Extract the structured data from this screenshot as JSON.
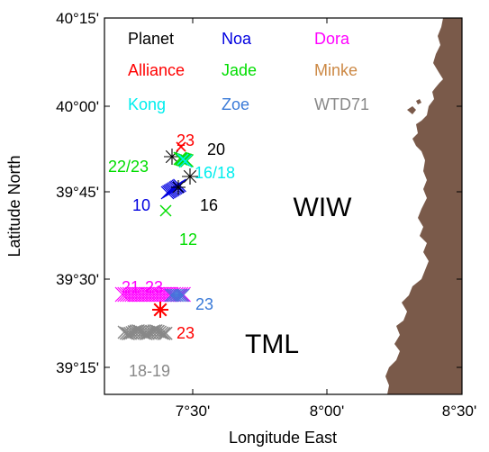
{
  "axes": {
    "x_title": "Longitude East",
    "y_title": "Latitude North",
    "x_ticks": [
      "7°30'",
      "8°00'",
      "8°30'"
    ],
    "y_ticks": [
      "40°15'",
      "40°00'",
      "39°45'",
      "39°30'",
      "39°15'"
    ]
  },
  "legend": [
    {
      "label": "Planet",
      "color": "#000000"
    },
    {
      "label": "Noa",
      "color": "#0000e0"
    },
    {
      "label": "Dora",
      "color": "#ff00ff"
    },
    {
      "label": "Alliance",
      "color": "#ff0000"
    },
    {
      "label": "Jade",
      "color": "#00dd00"
    },
    {
      "label": "Minke",
      "color": "#cc8844"
    },
    {
      "label": "Kong",
      "color": "#00eeee"
    },
    {
      "label": "Zoe",
      "color": "#3a7ad8"
    },
    {
      "label": "WTD71",
      "color": "#888888"
    }
  ],
  "regions": {
    "wiw": "WIW",
    "tml": "TML"
  },
  "land_color": "#7a5a4a",
  "annotations": [
    {
      "text": "23",
      "color": "#ff0000"
    },
    {
      "text": "20",
      "color": "#000000"
    },
    {
      "text": "22/23",
      "color": "#00dd00"
    },
    {
      "text": "16/18",
      "color": "#00eeee"
    },
    {
      "text": "10",
      "color": "#0000e0"
    },
    {
      "text": "16",
      "color": "#000000"
    },
    {
      "text": "12",
      "color": "#00dd00"
    },
    {
      "text": "21-23",
      "color": "#ff00ff"
    },
    {
      "text": "23",
      "color": "#3a7ad8"
    },
    {
      "text": "23",
      "color": "#ff0000"
    },
    {
      "text": "18-19",
      "color": "#888888"
    }
  ]
}
